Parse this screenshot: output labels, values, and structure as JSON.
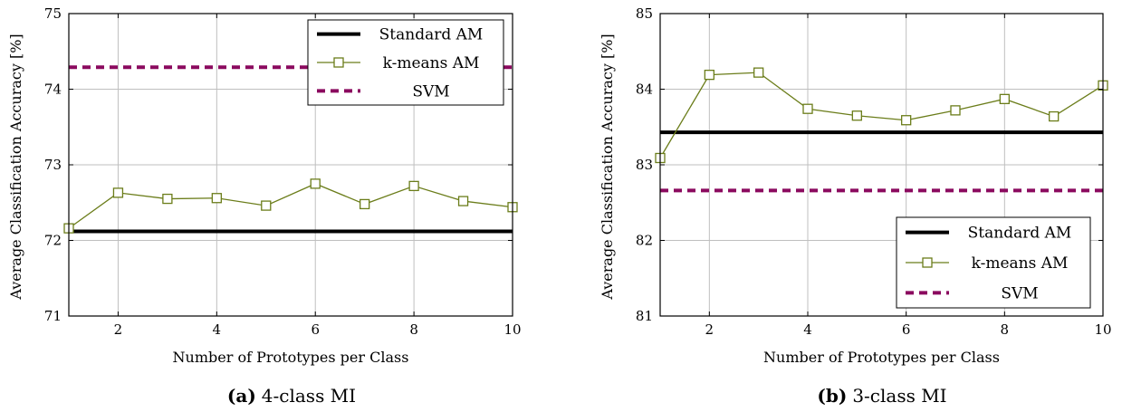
{
  "chart_data": [
    {
      "type": "line",
      "caption_label": "(a)",
      "caption_text": "4-class MI",
      "xlabel": "Number of Prototypes per Class",
      "ylabel": "Average Classification Accuracy [%]",
      "xlim": [
        1,
        10
      ],
      "ylim": [
        71,
        75
      ],
      "xticks": [
        2,
        4,
        6,
        8,
        10
      ],
      "yticks": [
        71,
        72,
        73,
        74,
        75
      ],
      "grid": true,
      "legend_position": "top-right",
      "series": [
        {
          "name": "Standard AM",
          "kind": "hline",
          "value": 72.12,
          "color": "#000000",
          "style": "solid"
        },
        {
          "name": "k-means AM",
          "kind": "markers",
          "color": "#6b7d1a",
          "style": "solid-square",
          "x": [
            1,
            2,
            3,
            4,
            5,
            6,
            7,
            8,
            9,
            10
          ],
          "values": [
            72.16,
            72.63,
            72.55,
            72.56,
            72.46,
            72.75,
            72.48,
            72.72,
            72.52,
            72.44
          ]
        },
        {
          "name": "SVM",
          "kind": "hline",
          "value": 74.29,
          "color": "#8b0a5f",
          "style": "dashed"
        }
      ]
    },
    {
      "type": "line",
      "caption_label": "(b)",
      "caption_text": "3-class MI",
      "xlabel": "Number of Prototypes per Class",
      "ylabel": "Average Classification Accuracy [%]",
      "xlim": [
        1,
        10
      ],
      "ylim": [
        81,
        85
      ],
      "xticks": [
        2,
        4,
        6,
        8,
        10
      ],
      "yticks": [
        81,
        82,
        83,
        84,
        85
      ],
      "grid": true,
      "legend_position": "bottom-right",
      "series": [
        {
          "name": "Standard AM",
          "kind": "hline",
          "value": 83.43,
          "color": "#000000",
          "style": "solid"
        },
        {
          "name": "k-means AM",
          "kind": "markers",
          "color": "#6b7d1a",
          "style": "solid-square",
          "x": [
            1,
            2,
            3,
            4,
            5,
            6,
            7,
            8,
            9,
            10
          ],
          "values": [
            83.09,
            84.19,
            84.22,
            83.74,
            83.65,
            83.59,
            83.72,
            83.87,
            83.64,
            84.05
          ]
        },
        {
          "name": "SVM",
          "kind": "hline",
          "value": 82.66,
          "color": "#8b0a5f",
          "style": "dashed"
        }
      ]
    }
  ]
}
